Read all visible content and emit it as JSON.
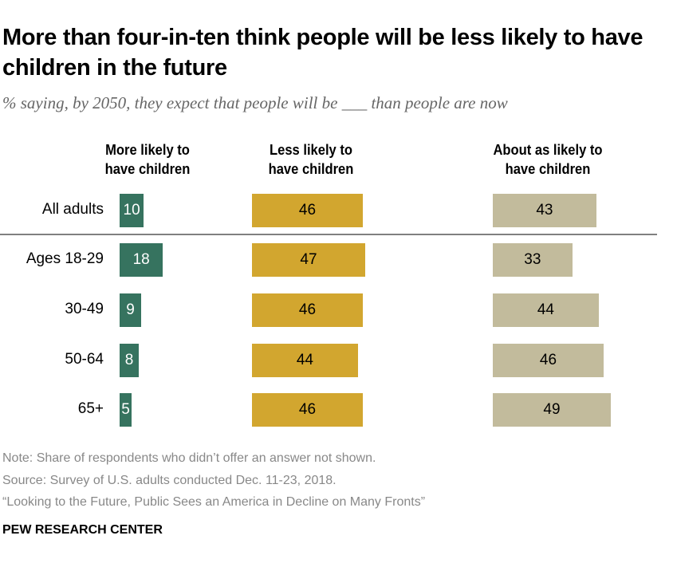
{
  "title": "More than four-in-ten think people will be less likely to have children in the future",
  "subtitle": "% saying, by 2050, they expect that people will be ___ than people are now",
  "chart_data": {
    "type": "bar",
    "orientation": "horizontal",
    "categories": [
      "All adults",
      "Ages 18-29",
      "30-49",
      "50-64",
      "65+"
    ],
    "series": [
      {
        "name": "More likely to have children",
        "color": "#36735f",
        "values": [
          10,
          18,
          9,
          8,
          5
        ]
      },
      {
        "name": "Less likely to have children",
        "color": "#d2a62f",
        "values": [
          46,
          47,
          46,
          44,
          46
        ]
      },
      {
        "name": "About as likely to have children",
        "color": "#c2bb9c",
        "values": [
          43,
          33,
          44,
          46,
          49
        ]
      }
    ]
  },
  "notes": [
    "Note: Share of respondents who didn’t offer an answer not shown.",
    "Source: Survey of U.S. adults conducted Dec. 11-23, 2018.",
    "“Looking to the Future, Public Sees an America in Decline on Many Fronts”"
  ],
  "brand": "PEW RESEARCH CENTER"
}
